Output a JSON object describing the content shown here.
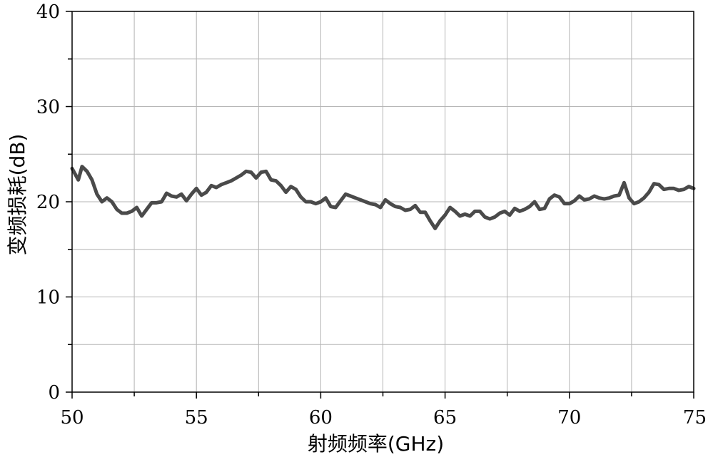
{
  "chart_data": {
    "type": "line",
    "title": "",
    "xlabel": "射频频率(GHz)",
    "ylabel": "变频损耗(dB)",
    "xlim": [
      50,
      75
    ],
    "ylim": [
      0,
      40
    ],
    "xticks": [
      50,
      55,
      60,
      65,
      70,
      75
    ],
    "yticks": [
      0,
      10,
      20,
      30,
      40
    ],
    "grid": true,
    "legend": "none",
    "colors": {
      "series": "#4a4a4a",
      "grid": "#b4b4b4",
      "axis": "#000000"
    },
    "series": [
      {
        "x": [
          50.0,
          50.25,
          50.4,
          50.6,
          50.8,
          51.0,
          51.2,
          51.4,
          51.6,
          51.8,
          52.0,
          52.2,
          52.4,
          52.6,
          52.8,
          53.0,
          53.2,
          53.4,
          53.6,
          53.8,
          54.0,
          54.2,
          54.4,
          54.6,
          54.8,
          55.0,
          55.2,
          55.4,
          55.6,
          55.8,
          56.0,
          56.2,
          56.4,
          56.6,
          56.8,
          57.0,
          57.2,
          57.4,
          57.6,
          57.8,
          58.0,
          58.2,
          58.4,
          58.6,
          58.8,
          59.0,
          59.2,
          59.4,
          59.6,
          59.8,
          60.0,
          60.2,
          60.4,
          60.6,
          60.8,
          61.0,
          61.2,
          61.4,
          61.6,
          61.8,
          62.0,
          62.2,
          62.4,
          62.6,
          62.8,
          63.0,
          63.2,
          63.4,
          63.6,
          63.8,
          64.0,
          64.2,
          64.4,
          64.6,
          64.8,
          65.0,
          65.2,
          65.4,
          65.6,
          65.8,
          66.0,
          66.2,
          66.4,
          66.6,
          66.8,
          67.0,
          67.2,
          67.4,
          67.6,
          67.8,
          68.0,
          68.2,
          68.4,
          68.6,
          68.8,
          69.0,
          69.2,
          69.4,
          69.6,
          69.8,
          70.0,
          70.2,
          70.4,
          70.6,
          70.8,
          71.0,
          71.2,
          71.4,
          71.6,
          71.8,
          72.0,
          72.2,
          72.4,
          72.6,
          72.8,
          73.0,
          73.2,
          73.4,
          73.6,
          73.8,
          74.0,
          74.2,
          74.4,
          74.6,
          74.8,
          75.0
        ],
        "values": [
          23.5,
          22.3,
          23.7,
          23.2,
          22.3,
          20.8,
          20.0,
          20.4,
          20.0,
          19.2,
          18.8,
          18.8,
          19.0,
          19.4,
          18.5,
          19.2,
          19.9,
          19.9,
          20.0,
          20.9,
          20.6,
          20.5,
          20.8,
          20.1,
          20.8,
          21.4,
          20.7,
          21.0,
          21.7,
          21.5,
          21.8,
          22.0,
          22.2,
          22.5,
          22.8,
          23.2,
          23.1,
          22.5,
          23.1,
          23.2,
          22.3,
          22.2,
          21.7,
          21.0,
          21.6,
          21.3,
          20.5,
          20.0,
          20.0,
          19.8,
          20.0,
          20.4,
          19.5,
          19.4,
          20.1,
          20.8,
          20.6,
          20.4,
          20.2,
          20.0,
          19.8,
          19.7,
          19.4,
          20.2,
          19.8,
          19.5,
          19.4,
          19.1,
          19.2,
          19.6,
          18.9,
          18.9,
          18.0,
          17.2,
          18.0,
          18.6,
          19.4,
          19.0,
          18.5,
          18.7,
          18.5,
          19.0,
          19.0,
          18.4,
          18.2,
          18.4,
          18.8,
          19.0,
          18.6,
          19.3,
          19.0,
          19.2,
          19.5,
          20.0,
          19.2,
          19.3,
          20.3,
          20.7,
          20.5,
          19.8,
          19.8,
          20.1,
          20.6,
          20.2,
          20.3,
          20.6,
          20.4,
          20.3,
          20.4,
          20.6,
          20.7,
          22.0,
          20.4,
          19.8,
          20.0,
          20.4,
          21.0,
          21.9,
          21.8,
          21.3,
          21.4,
          21.4,
          21.2,
          21.3,
          21.6,
          21.4
        ]
      }
    ]
  }
}
